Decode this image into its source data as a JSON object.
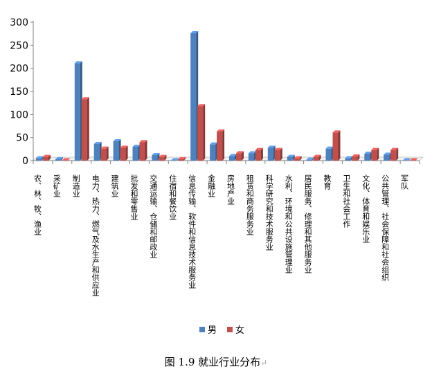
{
  "chart_data": {
    "type": "bar",
    "title": "",
    "xlabel": "",
    "ylabel": "",
    "ylim": [
      0,
      300
    ],
    "yticks": [
      0,
      50,
      100,
      150,
      200,
      250,
      300
    ],
    "grid": false,
    "legend_position": "bottom",
    "categories": [
      "农、林、牧、渔业",
      "采矿业",
      "制造业",
      "电力、热力、燃气及水生产和供应业",
      "建筑业",
      "批发和零售业",
      "交通运输、仓储和邮政业",
      "住宿和餐饮业",
      "信息传输、软件和信息技术服务业",
      "金融业",
      "房地产业",
      "租赁和商务服务业",
      "科学研究和技术服务业",
      "水利、环境和公共设施管理业",
      "居民服务、修理和其他服务业",
      "教育",
      "卫生和社会工作",
      "文化、体育和娱乐业",
      "公共管理、社会保障和社会组织",
      "军队"
    ],
    "series": [
      {
        "name": "男",
        "color": "#4f81bd",
        "values": [
          5,
          3,
          211,
          36,
          42,
          30,
          12,
          1,
          276,
          35,
          10,
          16,
          28,
          8,
          2,
          26,
          5,
          15,
          13,
          1
        ]
      },
      {
        "name": "女",
        "color": "#c0504d",
        "values": [
          8,
          1,
          133,
          26,
          28,
          40,
          8,
          3,
          118,
          63,
          16,
          23,
          23,
          5,
          8,
          61,
          9,
          23,
          23,
          1
        ]
      }
    ]
  },
  "caption": {
    "text": "图 1.9  就业行业分布",
    "mark": "↵"
  }
}
